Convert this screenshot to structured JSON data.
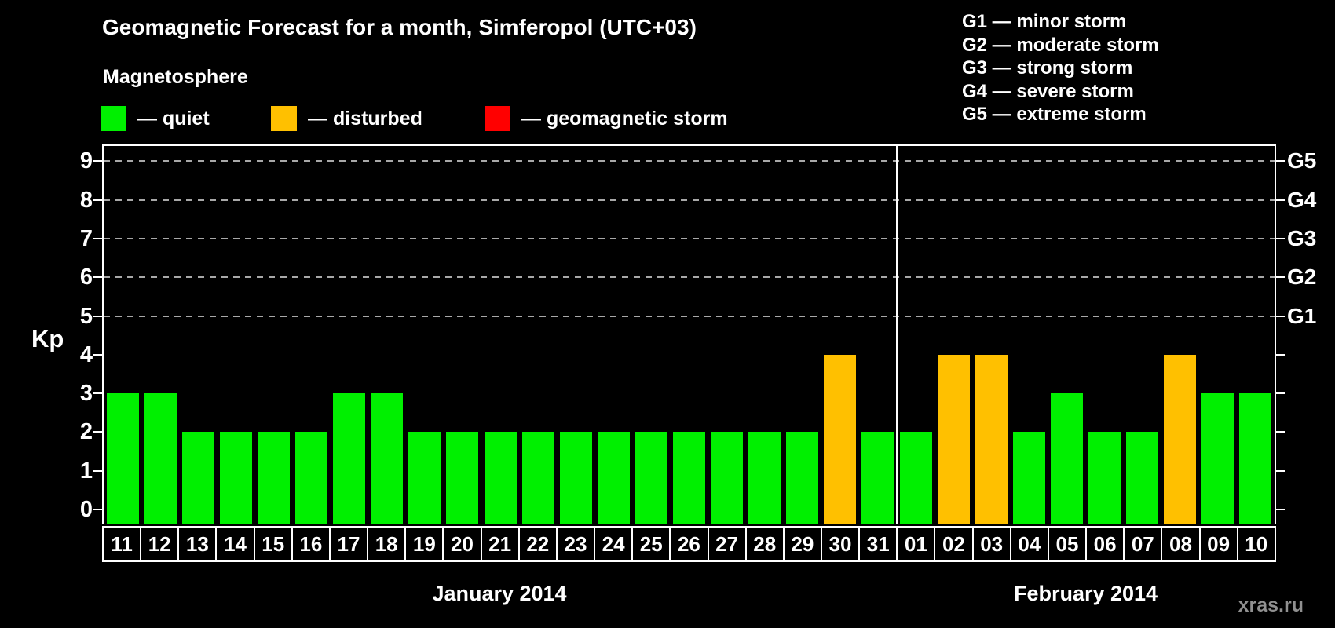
{
  "header": {
    "title": "Geomagnetic Forecast for a month, Simferopol (UTC+03)",
    "subtitle": "Magnetosphere"
  },
  "legend": [
    {
      "key": "quiet",
      "label": "— quiet",
      "color": "#00F000"
    },
    {
      "key": "disturbed",
      "label": "— disturbed",
      "color": "#FFC000"
    },
    {
      "key": "storm",
      "label": "— geomagnetic storm",
      "color": "#FF0000"
    }
  ],
  "g_legend": [
    "G1 — minor storm",
    "G2 — moderate storm",
    "G3 — strong storm",
    "G4 — severe storm",
    "G5 — extreme storm"
  ],
  "watermark": "xras.ru",
  "chart_data": {
    "type": "bar",
    "title": "Geomagnetic Forecast for a month, Simferopol (UTC+03)",
    "ylabel": "Kp",
    "ylim": [
      0,
      9
    ],
    "y_ticks": [
      0,
      1,
      2,
      3,
      4,
      5,
      6,
      7,
      8,
      9
    ],
    "gridlines_at_kp": [
      5,
      6,
      7,
      8,
      9
    ],
    "grid": "dashed horizontal at G-storm levels only",
    "legend_position": "top-left",
    "right_axis_labels": [
      {
        "label": "G1",
        "kp": 5
      },
      {
        "label": "G2",
        "kp": 6
      },
      {
        "label": "G3",
        "kp": 7
      },
      {
        "label": "G4",
        "kp": 8
      },
      {
        "label": "G5",
        "kp": 9
      }
    ],
    "months": [
      {
        "label": "January 2014",
        "days": [
          {
            "day": "11",
            "kp": 3,
            "state": "quiet"
          },
          {
            "day": "12",
            "kp": 3,
            "state": "quiet"
          },
          {
            "day": "13",
            "kp": 2,
            "state": "quiet"
          },
          {
            "day": "14",
            "kp": 2,
            "state": "quiet"
          },
          {
            "day": "15",
            "kp": 2,
            "state": "quiet"
          },
          {
            "day": "16",
            "kp": 2,
            "state": "quiet"
          },
          {
            "day": "17",
            "kp": 3,
            "state": "quiet"
          },
          {
            "day": "18",
            "kp": 3,
            "state": "quiet"
          },
          {
            "day": "19",
            "kp": 2,
            "state": "quiet"
          },
          {
            "day": "20",
            "kp": 2,
            "state": "quiet"
          },
          {
            "day": "21",
            "kp": 2,
            "state": "quiet"
          },
          {
            "day": "22",
            "kp": 2,
            "state": "quiet"
          },
          {
            "day": "23",
            "kp": 2,
            "state": "quiet"
          },
          {
            "day": "24",
            "kp": 2,
            "state": "quiet"
          },
          {
            "day": "25",
            "kp": 2,
            "state": "quiet"
          },
          {
            "day": "26",
            "kp": 2,
            "state": "quiet"
          },
          {
            "day": "27",
            "kp": 2,
            "state": "quiet"
          },
          {
            "day": "28",
            "kp": 2,
            "state": "quiet"
          },
          {
            "day": "29",
            "kp": 2,
            "state": "quiet"
          },
          {
            "day": "30",
            "kp": 4,
            "state": "disturbed"
          },
          {
            "day": "31",
            "kp": 2,
            "state": "quiet"
          }
        ]
      },
      {
        "label": "February 2014",
        "days": [
          {
            "day": "01",
            "kp": 2,
            "state": "quiet"
          },
          {
            "day": "02",
            "kp": 4,
            "state": "disturbed"
          },
          {
            "day": "03",
            "kp": 4,
            "state": "disturbed"
          },
          {
            "day": "04",
            "kp": 2,
            "state": "quiet"
          },
          {
            "day": "05",
            "kp": 3,
            "state": "quiet"
          },
          {
            "day": "06",
            "kp": 2,
            "state": "quiet"
          },
          {
            "day": "07",
            "kp": 2,
            "state": "quiet"
          },
          {
            "day": "08",
            "kp": 4,
            "state": "disturbed"
          },
          {
            "day": "09",
            "kp": 3,
            "state": "quiet"
          },
          {
            "day": "10",
            "kp": 3,
            "state": "quiet"
          }
        ]
      }
    ]
  }
}
